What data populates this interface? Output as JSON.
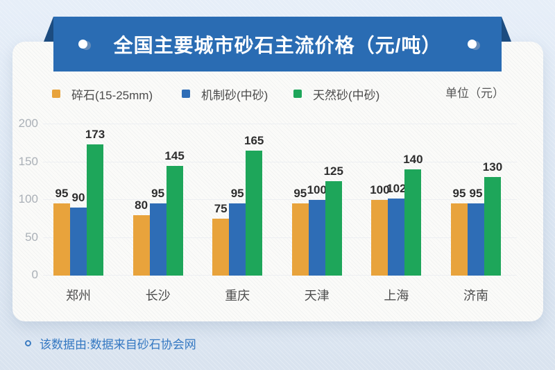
{
  "banner": {
    "title": "全国主要城市砂石主流价格（元/吨）"
  },
  "legend": {
    "items": [
      {
        "label": "碎石(15-25mm)",
        "color": "#e8a33c"
      },
      {
        "label": "机制砂(中砂)",
        "color": "#2e6db6"
      },
      {
        "label": "天然砂(中砂)",
        "color": "#1ea65a"
      }
    ],
    "unit_label": "单位（元）"
  },
  "chart_data": {
    "type": "bar",
    "title": "全国主要城市砂石主流价格（元/吨）",
    "categories": [
      "郑州",
      "长沙",
      "重庆",
      "天津",
      "上海",
      "济南"
    ],
    "series": [
      {
        "name": "碎石(15-25mm)",
        "color": "#e8a33c",
        "values": [
          95,
          80,
          75,
          95,
          100,
          95
        ]
      },
      {
        "name": "机制砂(中砂)",
        "color": "#2e6db6",
        "values": [
          90,
          95,
          95,
          100,
          102,
          95
        ]
      },
      {
        "name": "天然砂(中砂)",
        "color": "#1ea65a",
        "values": [
          173,
          145,
          165,
          125,
          140,
          130
        ]
      }
    ],
    "xlabel": "",
    "ylabel": "",
    "ylim": [
      0,
      200
    ],
    "yticks": [
      0,
      50,
      100,
      150,
      200
    ],
    "grid": true,
    "legend_position": "top",
    "value_labels": true
  },
  "footer": {
    "note": "该数据由:数据来自砂石协会网"
  }
}
